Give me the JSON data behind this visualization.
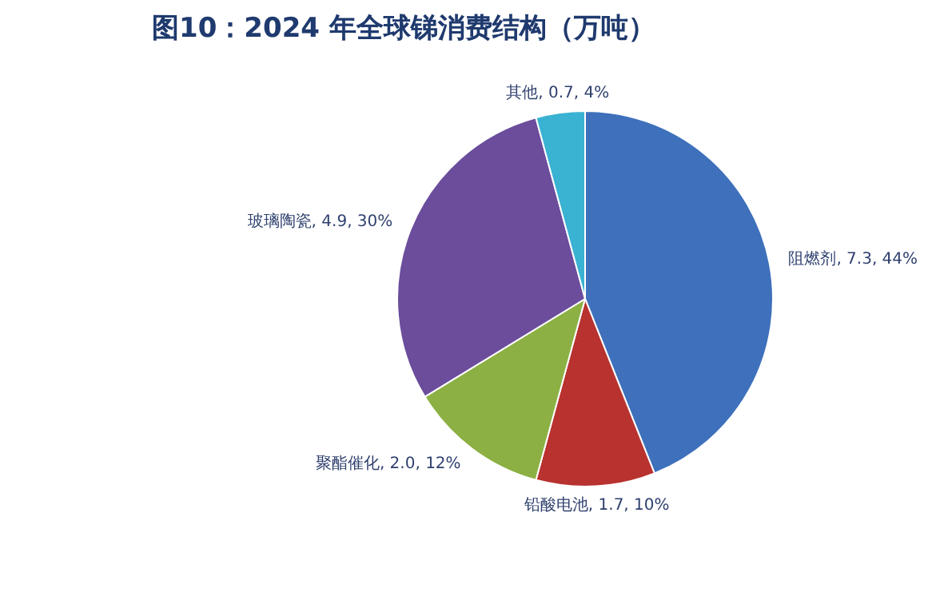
{
  "chart_data": {
    "type": "pie",
    "title": "图10：2024 年全球锑消费结构（万吨）",
    "categories": [
      "阻燃剂",
      "铅酸电池",
      "聚酯催化",
      "玻璃陶瓷",
      "其他"
    ],
    "values": [
      7.3,
      1.7,
      2.0,
      4.9,
      0.7
    ],
    "value_labels": [
      "7.3, 44%",
      "1.7, 10%",
      "2.0, 12%",
      "4.9, 30%",
      "0.7, 4%"
    ],
    "colors": [
      "#3e70bb",
      "#b8322f",
      "#8cb043",
      "#6b4d9c",
      "#3ab2d2"
    ],
    "legend": false
  }
}
